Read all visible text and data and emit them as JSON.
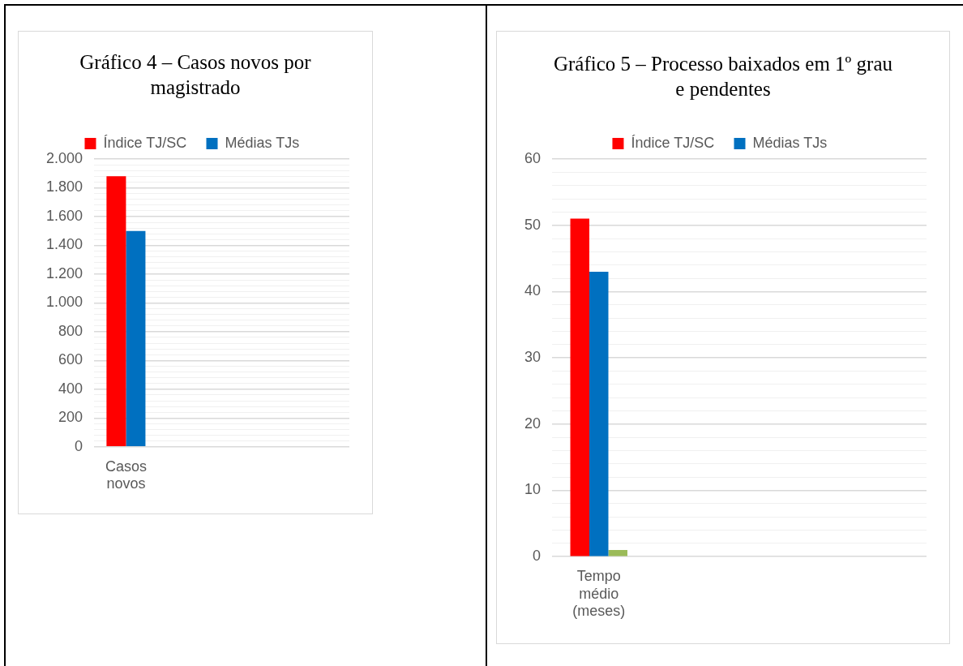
{
  "chart_data": [
    {
      "type": "bar",
      "title": "Gráfico 4 – Casos novos por magistrado",
      "categories": [
        "Casos novos",
        null,
        null,
        null
      ],
      "series": [
        {
          "name": "Índice TJ/SC",
          "color": "#ff0000",
          "values": [
            1880,
            null,
            null,
            null
          ]
        },
        {
          "name": "Médias TJs",
          "color": "#0070c0",
          "values": [
            1500,
            null,
            null,
            null
          ]
        }
      ],
      "ylim": [
        0,
        2000
      ],
      "yticks": [
        0,
        {
          "value": 40,
          "label": null
        },
        {
          "value": 80,
          "label": null
        },
        {
          "value": 120,
          "label": null
        },
        {
          "value": 160,
          "label": null
        },
        200,
        {
          "value": 240,
          "label": null
        },
        {
          "value": 280,
          "label": null
        },
        {
          "value": 320,
          "label": null
        },
        {
          "value": 360,
          "label": null
        },
        400,
        {
          "value": 440,
          "label": null
        },
        {
          "value": 480,
          "label": null
        },
        {
          "value": 520,
          "label": null
        },
        {
          "value": 560,
          "label": null
        },
        600,
        {
          "value": 640,
          "label": null
        },
        {
          "value": 680,
          "label": null
        },
        {
          "value": 720,
          "label": null
        },
        {
          "value": 760,
          "label": null
        },
        800,
        {
          "value": 840,
          "label": null
        },
        {
          "value": 880,
          "label": null
        },
        {
          "value": 920,
          "label": null
        },
        {
          "value": 960,
          "label": null
        },
        {
          "value": 1000,
          "label": "1.000"
        },
        {
          "value": 1040,
          "label": null
        },
        {
          "value": 1080,
          "label": null
        },
        {
          "value": 1120,
          "label": null
        },
        {
          "value": 1160,
          "label": null
        },
        {
          "value": 1200,
          "label": "1.200"
        },
        {
          "value": 1240,
          "label": null
        },
        {
          "value": 1280,
          "label": null
        },
        {
          "value": 1320,
          "label": null
        },
        {
          "value": 1360,
          "label": null
        },
        {
          "value": 1400,
          "label": "1.400"
        },
        {
          "value": 1440,
          "label": null
        },
        {
          "value": 1480,
          "label": null
        },
        {
          "value": 1520,
          "label": null
        },
        {
          "value": 1560,
          "label": null
        },
        {
          "value": 1600,
          "label": "1.600"
        },
        {
          "value": 1640,
          "label": null
        },
        {
          "value": 1680,
          "label": null
        },
        {
          "value": 1720,
          "label": null
        },
        {
          "value": 1760,
          "label": null
        },
        {
          "value": 1800,
          "label": "1.800"
        },
        {
          "value": 1840,
          "label": null
        },
        {
          "value": 1880,
          "label": null
        },
        {
          "value": 1920,
          "label": null
        },
        {
          "value": 1960,
          "label": null
        },
        {
          "value": 2000,
          "label": "2.000"
        }
      ],
      "grid": "y",
      "legend": "top"
    },
    {
      "type": "bar",
      "title": "Gráfico 5 – Processo baixados em 1º grau e pendentes",
      "categories": [
        "Tempo médio (meses)",
        null,
        null,
        null
      ],
      "series": [
        {
          "name": "Índice TJ/SC",
          "color": "#ff0000",
          "values": [
            51,
            null,
            null,
            null
          ]
        },
        {
          "name": "Médias TJs",
          "color": "#0070c0",
          "values": [
            43,
            null,
            null,
            null
          ]
        },
        {
          "color": "#9bbb59",
          "values": [
            1,
            null,
            null,
            null
          ]
        }
      ],
      "ylim": [
        0,
        60
      ],
      "yticks": [
        0,
        {
          "value": 2,
          "label": null
        },
        {
          "value": 4,
          "label": null
        },
        {
          "value": 6,
          "label": null
        },
        {
          "value": 8,
          "label": null
        },
        10,
        {
          "value": 12,
          "label": null
        },
        {
          "value": 14,
          "label": null
        },
        {
          "value": 16,
          "label": null
        },
        {
          "value": 18,
          "label": null
        },
        20,
        {
          "value": 22,
          "label": null
        },
        {
          "value": 24,
          "label": null
        },
        {
          "value": 26,
          "label": null
        },
        {
          "value": 28,
          "label": null
        },
        30,
        {
          "value": 32,
          "label": null
        },
        {
          "value": 34,
          "label": null
        },
        {
          "value": 36,
          "label": null
        },
        {
          "value": 38,
          "label": null
        },
        40,
        {
          "value": 42,
          "label": null
        },
        {
          "value": 44,
          "label": null
        },
        {
          "value": 46,
          "label": null
        },
        {
          "value": 48,
          "label": null
        },
        50,
        {
          "value": 52,
          "label": null
        },
        {
          "value": 54,
          "label": null
        },
        {
          "value": 56,
          "label": null
        },
        {
          "value": 58,
          "label": null
        },
        60
      ],
      "grid": "y",
      "legend": "top"
    }
  ]
}
